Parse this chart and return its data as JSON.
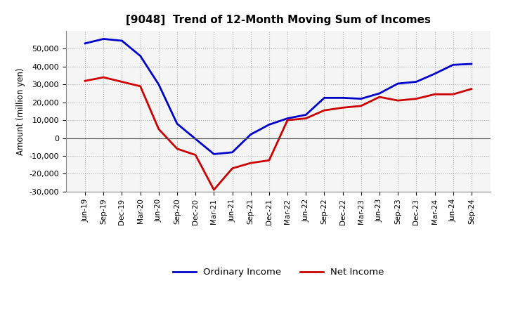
{
  "title": "[9048]  Trend of 12-Month Moving Sum of Incomes",
  "ylabel": "Amount (million yen)",
  "x_labels": [
    "Jun-19",
    "Sep-19",
    "Dec-19",
    "Mar-20",
    "Jun-20",
    "Sep-20",
    "Dec-20",
    "Mar-21",
    "Jun-21",
    "Sep-21",
    "Dec-21",
    "Mar-22",
    "Jun-22",
    "Sep-22",
    "Dec-22",
    "Mar-23",
    "Jun-23",
    "Sep-23",
    "Dec-23",
    "Mar-24",
    "Jun-24",
    "Sep-24"
  ],
  "ordinary_income": [
    53000,
    55500,
    54500,
    46000,
    30000,
    8000,
    -500,
    -9000,
    -8000,
    2000,
    7500,
    11000,
    13000,
    22500,
    22500,
    22000,
    25000,
    30500,
    31500,
    36000,
    41000,
    41500
  ],
  "net_income": [
    32000,
    34000,
    31500,
    29000,
    5000,
    -6000,
    -9500,
    -29000,
    -17000,
    -14000,
    -12500,
    10000,
    11000,
    15500,
    17000,
    18000,
    23000,
    21000,
    22000,
    24500,
    24500,
    27500
  ],
  "ordinary_color": "#0000cc",
  "net_color": "#cc0000",
  "ylim": [
    -30000,
    60000
  ],
  "yticks": [
    -30000,
    -20000,
    -10000,
    0,
    10000,
    20000,
    30000,
    40000,
    50000
  ],
  "grid_color": "#aaaaaa",
  "plot_bg_color": "#f5f5f5",
  "background_color": "#ffffff",
  "legend_labels": [
    "Ordinary Income",
    "Net Income"
  ]
}
